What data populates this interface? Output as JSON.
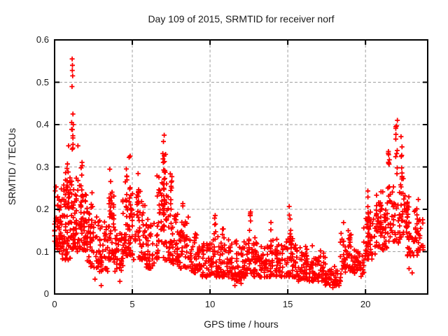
{
  "chart_data": {
    "type": "scatter",
    "title": "Day 109 of 2015, SRMTID for receiver norf",
    "xlabel": "GPS time / hours",
    "ylabel": "SRMTID / TECUs",
    "xlim": [
      0,
      24
    ],
    "ylim": [
      0,
      0.6
    ],
    "xticks": [
      0,
      5,
      10,
      15,
      20
    ],
    "xtick_labels": [
      "0",
      "5",
      "10",
      "15",
      "20"
    ],
    "yticks": [
      0,
      0.1,
      0.2,
      0.3,
      0.4,
      0.5,
      0.6
    ],
    "ytick_labels": [
      "0",
      "0.1",
      "0.2",
      "0.3",
      "0.4",
      "0.5",
      "0.6"
    ],
    "grid": true,
    "legend": "none",
    "marker": "plus",
    "marker_color": "#ff0000",
    "grid_color": "#a0a0a0",
    "axis_color": "#000000",
    "background": "#ffffff",
    "seed": 109,
    "band_profile": [
      [
        0.0,
        0.5,
        0.1,
        0.23,
        55
      ],
      [
        0.5,
        1.0,
        0.08,
        0.26,
        60
      ],
      [
        1.0,
        1.5,
        0.1,
        0.27,
        60
      ],
      [
        1.5,
        2.1,
        0.1,
        0.24,
        55
      ],
      [
        2.1,
        2.8,
        0.06,
        0.18,
        50
      ],
      [
        2.8,
        3.4,
        0.05,
        0.16,
        40
      ],
      [
        3.4,
        3.8,
        0.08,
        0.22,
        35
      ],
      [
        3.8,
        4.4,
        0.05,
        0.16,
        40
      ],
      [
        4.4,
        5.1,
        0.09,
        0.24,
        55
      ],
      [
        5.1,
        5.8,
        0.08,
        0.22,
        50
      ],
      [
        5.8,
        6.6,
        0.06,
        0.17,
        45
      ],
      [
        6.6,
        7.3,
        0.08,
        0.25,
        50
      ],
      [
        7.3,
        7.9,
        0.07,
        0.2,
        45
      ],
      [
        7.9,
        8.6,
        0.06,
        0.17,
        45
      ],
      [
        8.6,
        9.4,
        0.05,
        0.13,
        45
      ],
      [
        9.4,
        10.4,
        0.04,
        0.12,
        60
      ],
      [
        10.4,
        11.4,
        0.04,
        0.12,
        60
      ],
      [
        11.4,
        12.2,
        0.03,
        0.11,
        55
      ],
      [
        12.2,
        13.0,
        0.04,
        0.12,
        55
      ],
      [
        13.0,
        13.9,
        0.04,
        0.11,
        55
      ],
      [
        13.9,
        14.9,
        0.04,
        0.12,
        55
      ],
      [
        14.9,
        15.6,
        0.04,
        0.12,
        50
      ],
      [
        15.6,
        16.6,
        0.03,
        0.1,
        55
      ],
      [
        16.6,
        17.4,
        0.03,
        0.09,
        50
      ],
      [
        17.4,
        18.4,
        0.02,
        0.06,
        50
      ],
      [
        18.4,
        19.2,
        0.05,
        0.15,
        50
      ],
      [
        19.2,
        19.9,
        0.04,
        0.1,
        40
      ],
      [
        19.9,
        20.6,
        0.08,
        0.18,
        50
      ],
      [
        20.6,
        21.4,
        0.1,
        0.22,
        55
      ],
      [
        21.4,
        22.5,
        0.12,
        0.26,
        60
      ],
      [
        22.5,
        23.4,
        0.09,
        0.21,
        55
      ],
      [
        23.4,
        23.7,
        0.1,
        0.18,
        15
      ]
    ],
    "spikes": [
      {
        "x": 0.85,
        "y0": 0.2,
        "y1": 0.31,
        "n": 8
      },
      {
        "x": 1.15,
        "y0": 0.28,
        "y1": 0.4,
        "n": 7
      },
      {
        "x": 1.75,
        "y0": 0.2,
        "y1": 0.33,
        "n": 9
      },
      {
        "x": 2.4,
        "y0": 0.15,
        "y1": 0.24,
        "n": 6
      },
      {
        "x": 3.6,
        "y0": 0.18,
        "y1": 0.3,
        "n": 8
      },
      {
        "x": 4.6,
        "y0": 0.18,
        "y1": 0.3,
        "n": 9
      },
      {
        "x": 4.85,
        "y0": 0.15,
        "y1": 0.33,
        "n": 8
      },
      {
        "x": 5.35,
        "y0": 0.18,
        "y1": 0.3,
        "n": 7
      },
      {
        "x": 7.0,
        "y0": 0.15,
        "y1": 0.37,
        "n": 18
      },
      {
        "x": 7.1,
        "y0": 0.2,
        "y1": 0.35,
        "n": 10
      },
      {
        "x": 7.5,
        "y0": 0.12,
        "y1": 0.29,
        "n": 12
      },
      {
        "x": 8.2,
        "y0": 0.1,
        "y1": 0.22,
        "n": 7
      },
      {
        "x": 10.3,
        "y0": 0.1,
        "y1": 0.19,
        "n": 8
      },
      {
        "x": 10.8,
        "y0": 0.08,
        "y1": 0.16,
        "n": 6
      },
      {
        "x": 12.55,
        "y0": 0.12,
        "y1": 0.2,
        "n": 8
      },
      {
        "x": 13.95,
        "y0": 0.1,
        "y1": 0.17,
        "n": 6
      },
      {
        "x": 15.15,
        "y0": 0.12,
        "y1": 0.22,
        "n": 8
      },
      {
        "x": 16.2,
        "y0": 0.08,
        "y1": 0.15,
        "n": 5
      },
      {
        "x": 20.2,
        "y0": 0.12,
        "y1": 0.25,
        "n": 9
      },
      {
        "x": 21.0,
        "y0": 0.12,
        "y1": 0.22,
        "n": 7
      },
      {
        "x": 21.5,
        "y0": 0.25,
        "y1": 0.34,
        "n": 10
      },
      {
        "x": 22.0,
        "y0": 0.28,
        "y1": 0.4,
        "n": 9
      },
      {
        "x": 22.3,
        "y0": 0.25,
        "y1": 0.38,
        "n": 10
      },
      {
        "x": 22.6,
        "y0": 0.15,
        "y1": 0.26,
        "n": 8
      }
    ],
    "outlier_points": [
      [
        1.13,
        0.555
      ],
      [
        1.15,
        0.54
      ],
      [
        1.14,
        0.528
      ],
      [
        1.16,
        0.515
      ],
      [
        1.12,
        0.49
      ],
      [
        1.18,
        0.425
      ],
      [
        1.1,
        0.405
      ],
      [
        1.2,
        0.4
      ],
      [
        0.9,
        0.35
      ],
      [
        1.5,
        0.35
      ],
      [
        7.05,
        0.375
      ],
      [
        7.0,
        0.36
      ],
      [
        22.05,
        0.41
      ],
      [
        21.95,
        0.395
      ],
      [
        2.6,
        0.035
      ],
      [
        3.0,
        0.02
      ],
      [
        4.2,
        0.03
      ],
      [
        11.6,
        0.02
      ],
      [
        12.0,
        0.025
      ],
      [
        17.9,
        0.015
      ],
      [
        18.1,
        0.02
      ],
      [
        23.0,
        0.05
      ],
      [
        22.8,
        0.06
      ]
    ]
  }
}
